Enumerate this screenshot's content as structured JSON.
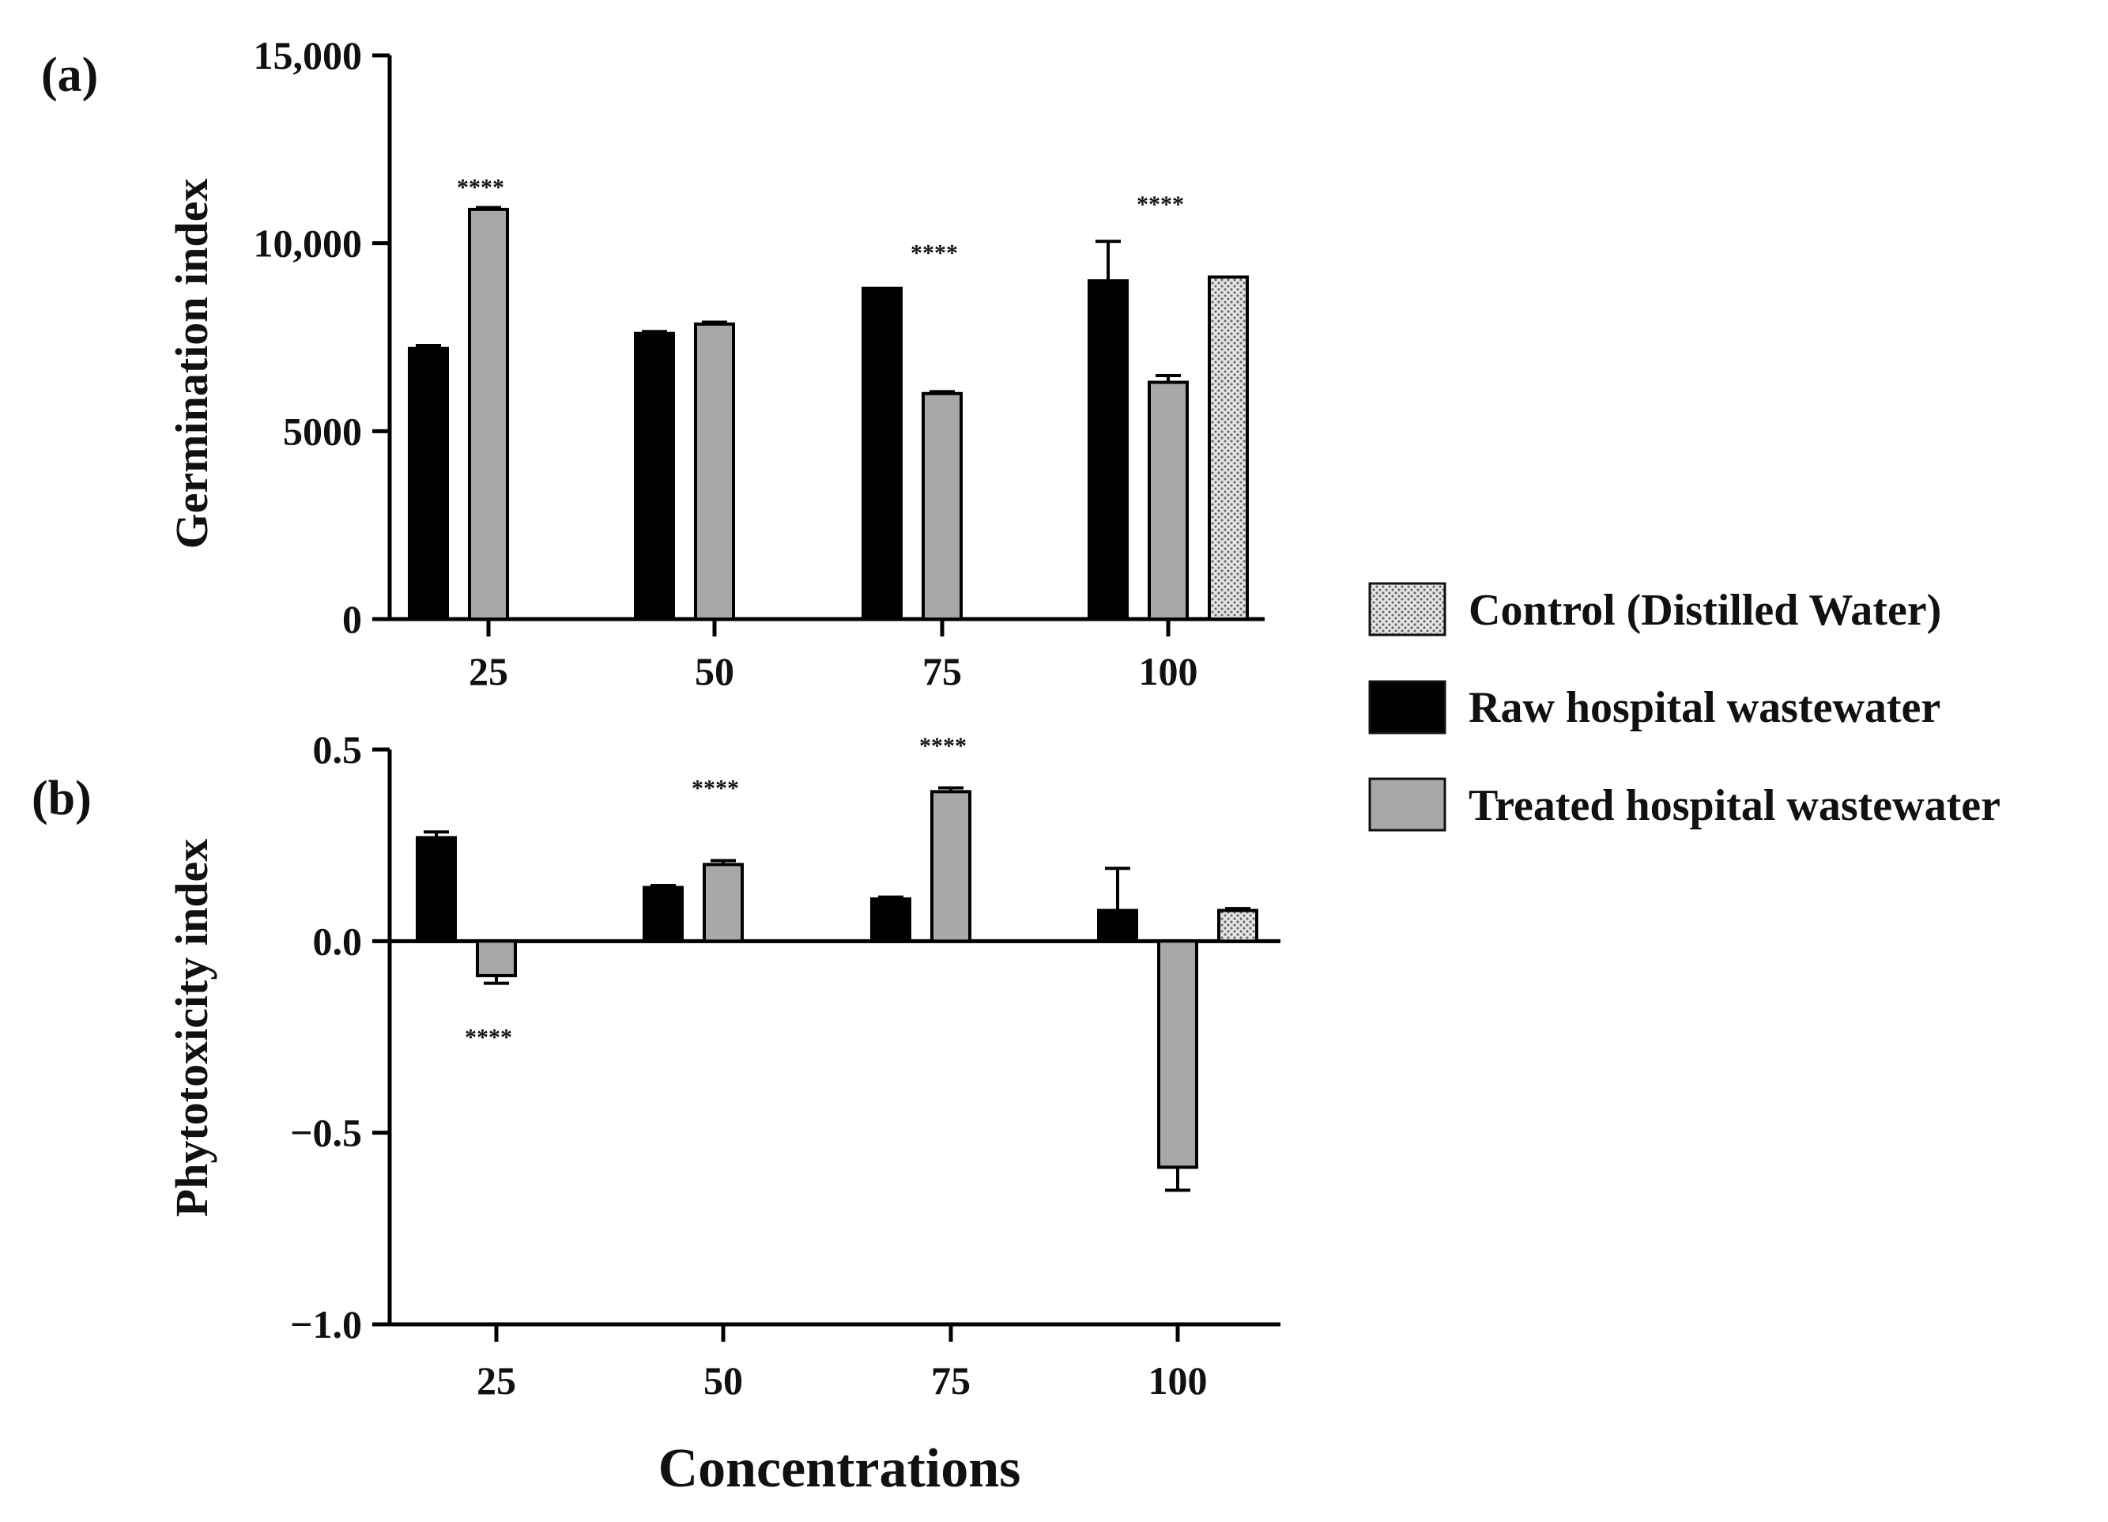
{
  "legend": {
    "items": [
      {
        "key": "control",
        "label": "Control (Distilled Water)",
        "fill": "#d8d8d8",
        "pattern": "dots"
      },
      {
        "key": "raw",
        "label": "Raw hospital wastewater",
        "fill": "#000000"
      },
      {
        "key": "treated",
        "label": "Treated hospital wastewater",
        "fill": "#a8a8a8"
      }
    ]
  },
  "xlabel": "Concentrations",
  "chart_data": [
    {
      "panel": "(a)",
      "type": "bar",
      "ylabel": "Germination index",
      "categories": [
        "25",
        "50",
        "75",
        "100"
      ],
      "ylim": [
        0,
        15000
      ],
      "yticks": [
        {
          "value": 0,
          "label": "0"
        },
        {
          "value": 5000,
          "label": "5000"
        },
        {
          "value": 10000,
          "label": "10,000"
        },
        {
          "value": 15000,
          "label": "15,000"
        }
      ],
      "series": [
        {
          "name": "Raw hospital wastewater",
          "key": "raw",
          "values": [
            7200,
            7600,
            8800,
            9000
          ],
          "errors": [
            80,
            50,
            0,
            1050
          ]
        },
        {
          "name": "Treated hospital wastewater",
          "key": "treated",
          "values": [
            10900,
            7850,
            6000,
            6300
          ],
          "errors": [
            50,
            50,
            50,
            180
          ]
        }
      ],
      "control": {
        "name": "Control (Distilled Water)",
        "category": "100",
        "value": 9100,
        "error": 0
      },
      "significance": [
        {
          "category": "25",
          "label": "****",
          "value": 11500
        },
        {
          "category": "75",
          "label": "****",
          "value": 9750
        },
        {
          "category": "100",
          "label": "****",
          "value": 11050
        }
      ],
      "grid": false
    },
    {
      "panel": "(b)",
      "type": "bar",
      "ylabel": "Phytotoxicity index",
      "categories": [
        "25",
        "50",
        "75",
        "100"
      ],
      "ylim": [
        -1.0,
        0.5
      ],
      "yticks": [
        {
          "value": -1.0,
          "label": "−1.0"
        },
        {
          "value": -0.5,
          "label": "−0.5"
        },
        {
          "value": 0.0,
          "label": "0.0"
        },
        {
          "value": 0.5,
          "label": "0.5"
        }
      ],
      "series": [
        {
          "name": "Raw hospital wastewater",
          "key": "raw",
          "values": [
            0.27,
            0.14,
            0.11,
            0.08
          ],
          "errors": [
            0.015,
            0.005,
            0.005,
            0.11
          ]
        },
        {
          "name": "Treated hospital wastewater",
          "key": "treated",
          "values": [
            -0.09,
            0.2,
            0.39,
            -0.59
          ],
          "errors": [
            0.02,
            0.01,
            0.01,
            0.06
          ]
        }
      ],
      "control": {
        "name": "Control (Distilled Water)",
        "category": "100",
        "value": 0.08,
        "error": 0.005
      },
      "significance": [
        {
          "category": "25",
          "label": "****",
          "value": -0.25
        },
        {
          "category": "50",
          "label": "****",
          "value": 0.4
        },
        {
          "category": "75",
          "label": "****",
          "value": 0.51
        }
      ],
      "grid": false
    }
  ]
}
